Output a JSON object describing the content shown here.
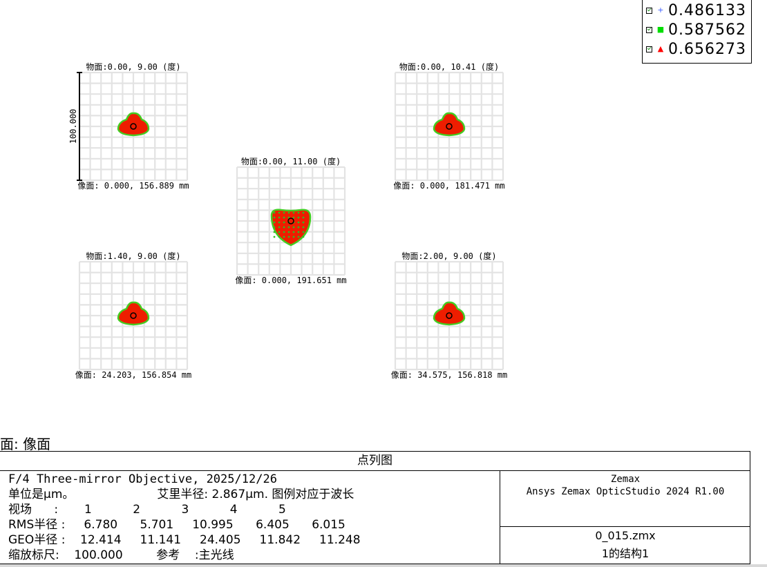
{
  "legend": [
    {
      "wavelength": "0.486133",
      "color": "#3b5bff",
      "symbol": "+"
    },
    {
      "wavelength": "0.587562",
      "color": "#00dd00",
      "symbol": "■"
    },
    {
      "wavelength": "0.656273",
      "color": "#ff0000",
      "symbol": "▲"
    }
  ],
  "chart_data": {
    "type": "spot_diagram",
    "scale_bar_label": "100.000",
    "fields": [
      {
        "id": 1,
        "object": "物面:0.00, 9.00 (度)",
        "image": "像面: 0.000, 156.889 mm",
        "spot_shape": "small"
      },
      {
        "id": 2,
        "object": "物面:0.00, 10.41 (度)",
        "image": "像面: 0.000, 181.471 mm",
        "spot_shape": "small"
      },
      {
        "id": 3,
        "object": "物面:0.00, 11.00 (度)",
        "image": "像面: 0.000, 191.651 mm",
        "spot_shape": "large"
      },
      {
        "id": 4,
        "object": "物面:1.40, 9.00 (度)",
        "image": "像面: 24.203, 156.854 mm",
        "spot_shape": "small"
      },
      {
        "id": 5,
        "object": "物面:2.00, 9.00 (度)",
        "image": "像面: 34.575, 156.818 mm",
        "spot_shape": "small"
      }
    ],
    "rms_radius": [
      6.78,
      5.701,
      10.995,
      6.405,
      6.015
    ],
    "geo_radius": [
      12.414,
      11.141,
      24.405,
      11.842,
      11.248
    ],
    "airy_radius_um": 2.867
  },
  "surface_label": "面: 像面",
  "info": {
    "title": "点列图",
    "line1": "F/4 Three-mirror Objective, 2025/12/26",
    "line2_units": "单位是μm。",
    "line2_airy": "艾里半径: 2.867μm. 图例对应于波长",
    "fields_label": "视场",
    "fields_row": "视场      :       1           2           3           4           5",
    "rms_row": "RMS半径 :     6.780      5.701     10.995      6.405      6.015",
    "geo_row": "GEO半径 :    12.414     11.141     24.405     11.842     11.248",
    "scale_row": "缩放标尺:    100.000         参考    :主光线",
    "right_top_1": "Zemax",
    "right_top_2": "Ansys Zemax OpticStudio 2024 R1.00",
    "right_bottom_1": "0_015.zmx",
    "right_bottom_2": "1的结构1"
  }
}
